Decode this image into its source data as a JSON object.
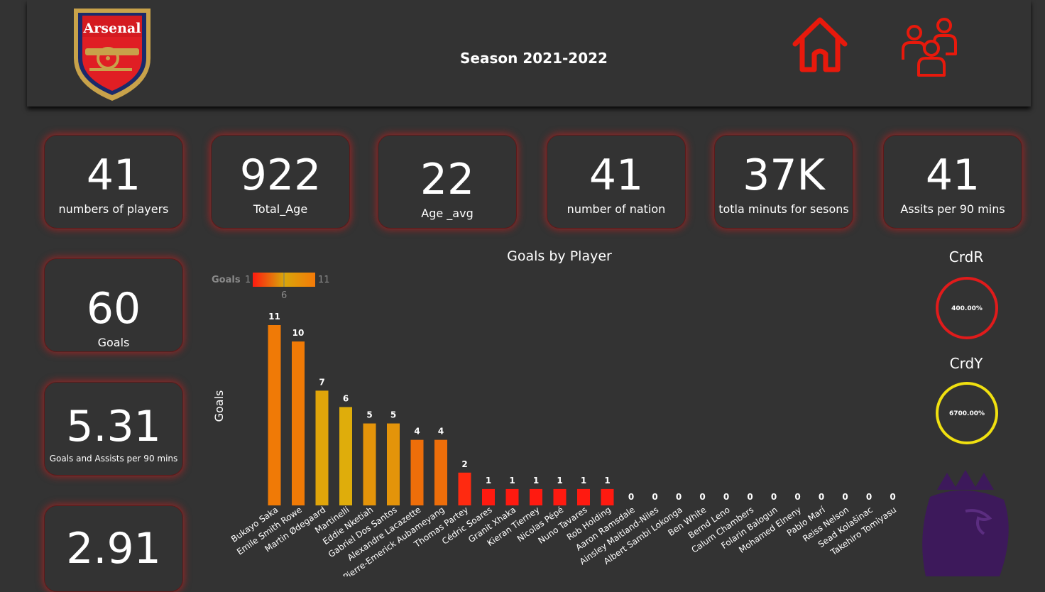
{
  "header": {
    "season": "Season 2021-2022",
    "club_logo_text": "Arsenal",
    "icons": [
      "home-icon",
      "people-icon"
    ]
  },
  "kpis": [
    {
      "value": "41",
      "label": "numbers of players"
    },
    {
      "value": "922",
      "label": "Total_Age"
    },
    {
      "value": "22",
      "label": "Age _avg"
    },
    {
      "value": "41",
      "label": "number of nation"
    },
    {
      "value": "37K",
      "label": "totla minuts for sesons"
    },
    {
      "value": "41",
      "label": "Assits per 90 mins"
    }
  ],
  "side_kpis": [
    {
      "value": "60",
      "label": "Goals"
    },
    {
      "value": "5.31",
      "label": "Goals and Assists per 90 mins"
    },
    {
      "value": "2.91",
      "label": ""
    }
  ],
  "gauges": [
    {
      "title": "CrdR",
      "value": "400.00%",
      "color": "#e01b1b"
    },
    {
      "title": "CrdY",
      "value": "6700.00%",
      "color": "#f0e010"
    }
  ],
  "colors": {
    "background": "#333333",
    "accent": "#e8190c",
    "premier_league": "#3d195b"
  },
  "chart_data": {
    "type": "bar",
    "title": "Goals by Player",
    "xlabel": "",
    "ylabel": "Goals",
    "ylim": [
      0,
      11
    ],
    "legend": {
      "title": "Goals",
      "min": "1",
      "mid": "6",
      "max": "11"
    },
    "categories": [
      "Bukayo Saka",
      "Emile Smith Rowe",
      "Martin Ødegaard",
      "Martinelli",
      "Eddie Nketiah",
      "Gabriel Dos Santos",
      "Alexandre Lacazette",
      "Pierre-Emerick Aubameyang",
      "Thomas Partey",
      "Cédric Soares",
      "Granit Xhaka",
      "Kieran Tierney",
      "Nicolas Pépé",
      "Nuno Tavares",
      "Rob Holding",
      "Aaron Ramsdale",
      "Ainsley Maitland-Niles",
      "Albert Sambi Lokonga",
      "Ben White",
      "Bernd Leno",
      "Calum Chambers",
      "Folarin Balogun",
      "Mohamed Elneny",
      "Pablo Marí",
      "Reiss Nelson",
      "Sead Kolašinac",
      "Takehiro Tomiyasu"
    ],
    "values": [
      11,
      10,
      7,
      6,
      5,
      5,
      4,
      4,
      2,
      1,
      1,
      1,
      1,
      1,
      1,
      0,
      0,
      0,
      0,
      0,
      0,
      0,
      0,
      0,
      0,
      0,
      0
    ]
  }
}
